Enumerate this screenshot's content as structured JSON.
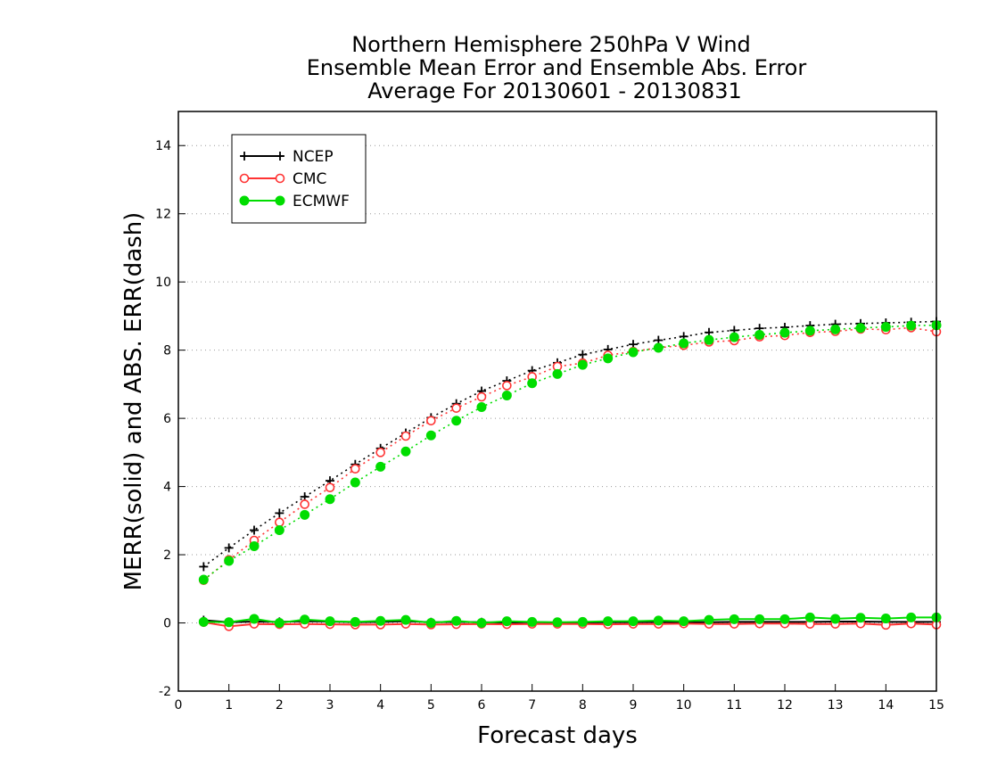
{
  "chart_data": {
    "type": "line",
    "title_lines": [
      "Northern Hemisphere 250hPa V Wind",
      "Ensemble Mean Error and Ensemble Abs. Error",
      "Average For 20130601 - 20130831"
    ],
    "xlabel": "Forecast days",
    "ylabel": "MERR(solid) and ABS. ERR(dash)",
    "xlim": [
      0,
      15
    ],
    "ylim": [
      -2,
      15
    ],
    "x_ticks": [
      "0",
      "1",
      "2",
      "3",
      "4",
      "5",
      "6",
      "7",
      "8",
      "9",
      "10",
      "11",
      "12",
      "13",
      "14",
      "15"
    ],
    "y_ticks": [
      "-2",
      "0",
      "2",
      "4",
      "6",
      "8",
      "10",
      "12",
      "14"
    ],
    "grid": "horizontal dotted",
    "legend_placement": "top-left",
    "x": [
      0.5,
      1,
      1.5,
      2,
      2.5,
      3,
      3.5,
      4,
      4.5,
      5,
      5.5,
      6,
      6.5,
      7,
      7.5,
      8,
      8.5,
      9,
      9.5,
      10,
      10.5,
      11,
      11.5,
      12,
      12.5,
      13,
      13.5,
      14,
      14.5,
      15
    ],
    "series": [
      {
        "name": "NCEP",
        "color": "#000000",
        "marker": "plus",
        "merr": [
          0.08,
          0.02,
          0.04,
          0.03,
          0.05,
          0.04,
          0.02,
          0.03,
          0.05,
          0.02,
          0.03,
          0.02,
          0.01,
          0.02,
          0.01,
          0.01,
          0.02,
          0.02,
          0.03,
          0.02,
          0.02,
          0.03,
          0.03,
          0.03,
          0.03,
          0.04,
          0.04,
          0.03,
          0.03,
          0.03
        ],
        "abs_err": [
          1.65,
          2.2,
          2.72,
          3.22,
          3.7,
          4.17,
          4.65,
          5.12,
          5.57,
          6.02,
          6.43,
          6.8,
          7.1,
          7.4,
          7.63,
          7.87,
          8.02,
          8.17,
          8.29,
          8.4,
          8.52,
          8.58,
          8.64,
          8.67,
          8.72,
          8.76,
          8.78,
          8.8,
          8.82,
          8.84
        ]
      },
      {
        "name": "CMC",
        "color": "#ff3333",
        "marker": "open-circle",
        "merr": [
          0.02,
          -0.1,
          -0.03,
          -0.04,
          -0.03,
          -0.04,
          -0.05,
          -0.05,
          -0.03,
          -0.05,
          -0.04,
          -0.03,
          -0.04,
          -0.03,
          -0.03,
          -0.03,
          -0.04,
          -0.03,
          -0.03,
          -0.02,
          -0.03,
          -0.03,
          -0.02,
          -0.02,
          -0.03,
          -0.03,
          -0.02,
          -0.06,
          -0.02,
          -0.05
        ],
        "abs_err": [
          1.25,
          1.85,
          2.42,
          2.95,
          3.48,
          3.97,
          4.52,
          5.0,
          5.48,
          5.93,
          6.3,
          6.63,
          6.96,
          7.22,
          7.52,
          7.62,
          7.85,
          7.96,
          8.07,
          8.14,
          8.24,
          8.28,
          8.39,
          8.43,
          8.52,
          8.55,
          8.62,
          8.6,
          8.66,
          8.54
        ]
      },
      {
        "name": "ECMWF",
        "color": "#00dd00",
        "marker": "filled-circle",
        "merr": [
          0.03,
          0.02,
          0.12,
          0.0,
          0.1,
          0.05,
          0.03,
          0.06,
          0.09,
          0.0,
          0.06,
          0.0,
          0.05,
          0.03,
          0.02,
          0.03,
          0.05,
          0.05,
          0.07,
          0.05,
          0.09,
          0.11,
          0.11,
          0.11,
          0.16,
          0.12,
          0.15,
          0.13,
          0.16,
          0.16
        ],
        "abs_err": [
          1.27,
          1.82,
          2.25,
          2.72,
          3.17,
          3.63,
          4.12,
          4.58,
          5.03,
          5.5,
          5.93,
          6.33,
          6.67,
          7.03,
          7.3,
          7.57,
          7.76,
          7.94,
          8.07,
          8.2,
          8.3,
          8.38,
          8.45,
          8.51,
          8.57,
          8.61,
          8.65,
          8.68,
          8.72,
          8.73
        ]
      }
    ]
  }
}
